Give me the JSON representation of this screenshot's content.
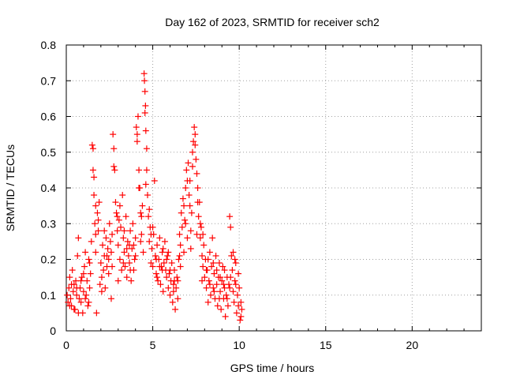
{
  "chart_data": {
    "type": "scatter",
    "title": "Day 162 of 2023, SRMTID for receiver sch2",
    "xlabel": "GPS time / hours",
    "ylabel": "SRMTID / TECUs",
    "xlim": [
      0,
      24
    ],
    "ylim": [
      0,
      0.8
    ],
    "xticks": [
      0,
      5,
      10,
      15,
      20
    ],
    "yticks": [
      0,
      0.1,
      0.2,
      0.3,
      0.4,
      0.5,
      0.6,
      0.7,
      0.8
    ],
    "grid": true,
    "marker": "+",
    "color": "#ff0000",
    "series": [
      {
        "name": "sch2",
        "points": [
          [
            0.05,
            0.1
          ],
          [
            0.1,
            0.08
          ],
          [
            0.15,
            0.12
          ],
          [
            0.2,
            0.15
          ],
          [
            0.25,
            0.09
          ],
          [
            0.3,
            0.07
          ],
          [
            0.35,
            0.17
          ],
          [
            0.4,
            0.11
          ],
          [
            0.45,
            0.13
          ],
          [
            0.5,
            0.06
          ],
          [
            0.55,
            0.14
          ],
          [
            0.6,
            0.1
          ],
          [
            0.65,
            0.21
          ],
          [
            0.7,
            0.26
          ],
          [
            0.75,
            0.09
          ],
          [
            0.8,
            0.12
          ],
          [
            0.85,
            0.08
          ],
          [
            0.9,
            0.15
          ],
          [
            0.95,
            0.05
          ],
          [
            1.0,
            0.11
          ],
          [
            1.05,
            0.18
          ],
          [
            1.1,
            0.22
          ],
          [
            1.15,
            0.1
          ],
          [
            1.2,
            0.14
          ],
          [
            1.25,
            0.07
          ],
          [
            1.3,
            0.2
          ],
          [
            1.35,
            0.12
          ],
          [
            1.4,
            0.16
          ],
          [
            1.45,
            0.25
          ],
          [
            1.5,
            0.52
          ],
          [
            1.55,
            0.45
          ],
          [
            1.6,
            0.38
          ],
          [
            1.65,
            0.3
          ],
          [
            1.7,
            0.22
          ],
          [
            1.75,
            0.05
          ],
          [
            1.8,
            0.33
          ],
          [
            1.85,
            0.28
          ],
          [
            1.9,
            0.36
          ],
          [
            1.95,
            0.13
          ],
          [
            2.0,
            0.19
          ],
          [
            2.05,
            0.15
          ],
          [
            2.1,
            0.24
          ],
          [
            2.15,
            0.17
          ],
          [
            2.2,
            0.21
          ],
          [
            2.25,
            0.12
          ],
          [
            2.3,
            0.26
          ],
          [
            2.35,
            0.18
          ],
          [
            2.4,
            0.23
          ],
          [
            2.45,
            0.2
          ],
          [
            2.5,
            0.3
          ],
          [
            2.55,
            0.25
          ],
          [
            2.6,
            0.09
          ],
          [
            2.65,
            0.27
          ],
          [
            2.7,
            0.55
          ],
          [
            2.75,
            0.51
          ],
          [
            2.8,
            0.45
          ],
          [
            2.85,
            0.36
          ],
          [
            2.9,
            0.33
          ],
          [
            2.95,
            0.28
          ],
          [
            3.0,
            0.24
          ],
          [
            3.05,
            0.31
          ],
          [
            3.1,
            0.2
          ],
          [
            3.15,
            0.29
          ],
          [
            3.2,
            0.17
          ],
          [
            3.25,
            0.38
          ],
          [
            3.3,
            0.26
          ],
          [
            3.35,
            0.22
          ],
          [
            3.4,
            0.18
          ],
          [
            3.45,
            0.32
          ],
          [
            3.5,
            0.15
          ],
          [
            3.55,
            0.25
          ],
          [
            3.6,
            0.21
          ],
          [
            3.65,
            0.19
          ],
          [
            3.7,
            0.28
          ],
          [
            3.75,
            0.14
          ],
          [
            3.8,
            0.23
          ],
          [
            3.85,
            0.3
          ],
          [
            3.9,
            0.17
          ],
          [
            3.95,
            0.2
          ],
          [
            4.0,
            0.26
          ],
          [
            4.05,
            0.57
          ],
          [
            4.1,
            0.53
          ],
          [
            4.15,
            0.6
          ],
          [
            4.2,
            0.45
          ],
          [
            4.25,
            0.4
          ],
          [
            4.3,
            0.33
          ],
          [
            4.35,
            0.27
          ],
          [
            4.4,
            0.35
          ],
          [
            4.45,
            0.22
          ],
          [
            4.5,
            0.72
          ],
          [
            4.52,
            0.7
          ],
          [
            4.55,
            0.67
          ],
          [
            4.58,
            0.63
          ],
          [
            4.6,
            0.56
          ],
          [
            4.65,
            0.51
          ],
          [
            4.7,
            0.38
          ],
          [
            4.75,
            0.32
          ],
          [
            4.8,
            0.25
          ],
          [
            4.85,
            0.29
          ],
          [
            4.9,
            0.19
          ],
          [
            4.95,
            0.23
          ],
          [
            5.0,
            0.18
          ],
          [
            5.05,
            0.27
          ],
          [
            5.1,
            0.42
          ],
          [
            5.15,
            0.21
          ],
          [
            5.2,
            0.16
          ],
          [
            5.25,
            0.24
          ],
          [
            5.3,
            0.14
          ],
          [
            5.35,
            0.2
          ],
          [
            5.4,
            0.26
          ],
          [
            5.45,
            0.13
          ],
          [
            5.5,
            0.18
          ],
          [
            5.55,
            0.22
          ],
          [
            5.6,
            0.11
          ],
          [
            5.65,
            0.19
          ],
          [
            5.7,
            0.25
          ],
          [
            5.75,
            0.17
          ],
          [
            5.8,
            0.15
          ],
          [
            5.85,
            0.21
          ],
          [
            5.9,
            0.12
          ],
          [
            5.95,
            0.16
          ],
          [
            6.0,
            0.1
          ],
          [
            6.05,
            0.14
          ],
          [
            6.1,
            0.19
          ],
          [
            6.15,
            0.08
          ],
          [
            6.2,
            0.13
          ],
          [
            6.25,
            0.17
          ],
          [
            6.3,
            0.06
          ],
          [
            6.35,
            0.12
          ],
          [
            6.4,
            0.15
          ],
          [
            6.45,
            0.09
          ],
          [
            6.5,
            0.2
          ],
          [
            6.55,
            0.27
          ],
          [
            6.6,
            0.24
          ],
          [
            6.65,
            0.33
          ],
          [
            6.7,
            0.29
          ],
          [
            6.75,
            0.37
          ],
          [
            6.8,
            0.22
          ],
          [
            6.85,
            0.31
          ],
          [
            6.9,
            0.4
          ],
          [
            6.95,
            0.45
          ],
          [
            7.0,
            0.42
          ],
          [
            7.05,
            0.47
          ],
          [
            7.1,
            0.38
          ],
          [
            7.15,
            0.35
          ],
          [
            7.2,
            0.28
          ],
          [
            7.25,
            0.33
          ],
          [
            7.3,
            0.5
          ],
          [
            7.35,
            0.53
          ],
          [
            7.4,
            0.57
          ],
          [
            7.45,
            0.55
          ],
          [
            7.5,
            0.48
          ],
          [
            7.55,
            0.44
          ],
          [
            7.6,
            0.4
          ],
          [
            7.65,
            0.32
          ],
          [
            7.7,
            0.36
          ],
          [
            7.75,
            0.26
          ],
          [
            7.8,
            0.29
          ],
          [
            7.85,
            0.21
          ],
          [
            7.9,
            0.18
          ],
          [
            7.95,
            0.24
          ],
          [
            8.0,
            0.15
          ],
          [
            8.05,
            0.2
          ],
          [
            8.1,
            0.12
          ],
          [
            8.15,
            0.17
          ],
          [
            8.2,
            0.08
          ],
          [
            8.25,
            0.14
          ],
          [
            8.3,
            0.22
          ],
          [
            8.35,
            0.1
          ],
          [
            8.4,
            0.18
          ],
          [
            8.45,
            0.26
          ],
          [
            8.5,
            0.12
          ],
          [
            8.55,
            0.16
          ],
          [
            8.6,
            0.09
          ],
          [
            8.65,
            0.21
          ],
          [
            8.7,
            0.13
          ],
          [
            8.75,
            0.07
          ],
          [
            8.8,
            0.15
          ],
          [
            8.85,
            0.19
          ],
          [
            8.9,
            0.11
          ],
          [
            8.95,
            0.06
          ],
          [
            9.0,
            0.14
          ],
          [
            9.05,
            0.18
          ],
          [
            9.1,
            0.09
          ],
          [
            9.15,
            0.12
          ],
          [
            9.2,
            0.04
          ],
          [
            9.25,
            0.1
          ],
          [
            9.3,
            0.15
          ],
          [
            9.35,
            0.07
          ],
          [
            9.4,
            0.13
          ],
          [
            9.45,
            0.32
          ],
          [
            9.5,
            0.29
          ],
          [
            9.55,
            0.21
          ],
          [
            9.6,
            0.17
          ],
          [
            9.65,
            0.11
          ],
          [
            9.7,
            0.08
          ],
          [
            9.75,
            0.14
          ],
          [
            9.8,
            0.19
          ],
          [
            9.85,
            0.05
          ],
          [
            9.9,
            0.1
          ],
          [
            9.95,
            0.07
          ],
          [
            10.0,
            0.12
          ],
          [
            10.05,
            0.03
          ],
          [
            10.1,
            0.08
          ],
          [
            10.15,
            0.06
          ],
          [
            0.2,
            0.07
          ],
          [
            0.45,
            0.06
          ],
          [
            0.6,
            0.12
          ],
          [
            0.85,
            0.14
          ],
          [
            1.1,
            0.09
          ],
          [
            1.35,
            0.19
          ],
          [
            1.55,
            0.51
          ],
          [
            1.6,
            0.43
          ],
          [
            1.7,
            0.27
          ],
          [
            1.85,
            0.31
          ],
          [
            2.2,
            0.28
          ],
          [
            2.45,
            0.16
          ],
          [
            2.6,
            0.22
          ],
          [
            2.75,
            0.46
          ],
          [
            2.95,
            0.32
          ],
          [
            3.1,
            0.35
          ],
          [
            3.3,
            0.19
          ],
          [
            3.5,
            0.23
          ],
          [
            3.7,
            0.17
          ],
          [
            3.9,
            0.24
          ],
          [
            4.1,
            0.55
          ],
          [
            4.2,
            0.4
          ],
          [
            4.35,
            0.32
          ],
          [
            4.55,
            0.61
          ],
          [
            4.65,
            0.45
          ],
          [
            4.8,
            0.34
          ],
          [
            5.0,
            0.29
          ],
          [
            5.2,
            0.2
          ],
          [
            5.4,
            0.18
          ],
          [
            5.6,
            0.23
          ],
          [
            5.8,
            0.2
          ],
          [
            6.0,
            0.17
          ],
          [
            6.2,
            0.11
          ],
          [
            6.45,
            0.14
          ],
          [
            6.6,
            0.18
          ],
          [
            6.8,
            0.35
          ],
          [
            7.0,
            0.26
          ],
          [
            7.15,
            0.42
          ],
          [
            7.3,
            0.46
          ],
          [
            7.45,
            0.52
          ],
          [
            7.6,
            0.36
          ],
          [
            7.75,
            0.3
          ],
          [
            7.9,
            0.27
          ],
          [
            8.1,
            0.17
          ],
          [
            8.3,
            0.13
          ],
          [
            8.5,
            0.19
          ],
          [
            8.7,
            0.17
          ],
          [
            8.9,
            0.15
          ],
          [
            9.1,
            0.13
          ],
          [
            9.3,
            0.09
          ],
          [
            9.5,
            0.15
          ],
          [
            9.65,
            0.22
          ],
          [
            9.8,
            0.13
          ],
          [
            9.95,
            0.16
          ],
          [
            10.1,
            0.04
          ],
          [
            0.3,
            0.13
          ],
          [
            0.7,
            0.05
          ],
          [
            1.0,
            0.16
          ],
          [
            1.3,
            0.08
          ],
          [
            1.7,
            0.35
          ],
          [
            2.05,
            0.11
          ],
          [
            2.35,
            0.21
          ],
          [
            2.65,
            0.18
          ],
          [
            3.0,
            0.14
          ],
          [
            3.35,
            0.28
          ],
          [
            3.65,
            0.24
          ],
          [
            4.0,
            0.21
          ],
          [
            4.3,
            0.25
          ],
          [
            4.6,
            0.41
          ],
          [
            4.9,
            0.27
          ],
          [
            5.25,
            0.15
          ],
          [
            5.55,
            0.17
          ],
          [
            5.9,
            0.22
          ],
          [
            6.25,
            0.14
          ],
          [
            6.55,
            0.21
          ],
          [
            6.9,
            0.3
          ],
          [
            7.2,
            0.23
          ],
          [
            7.55,
            0.27
          ],
          [
            7.85,
            0.14
          ],
          [
            8.2,
            0.2
          ],
          [
            8.55,
            0.11
          ],
          [
            8.85,
            0.09
          ],
          [
            9.15,
            0.17
          ],
          [
            9.45,
            0.12
          ],
          [
            9.75,
            0.2
          ]
        ]
      }
    ]
  }
}
